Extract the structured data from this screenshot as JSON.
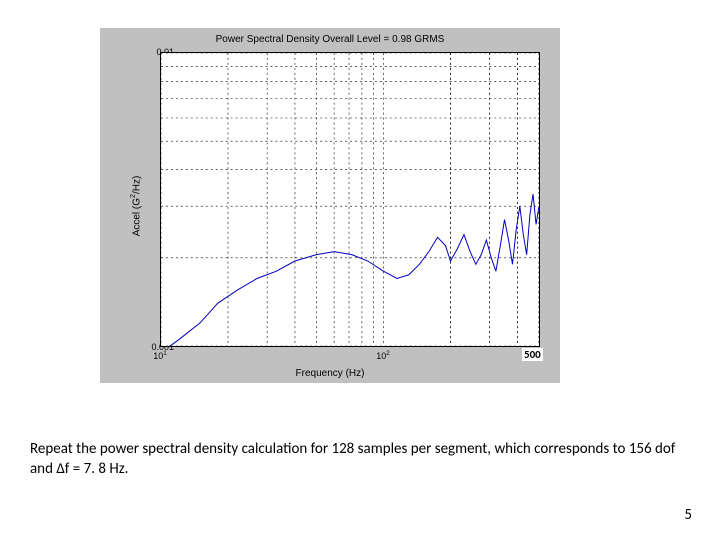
{
  "chart": {
    "type": "line",
    "title": "Power Spectral Density   Overall Level =   0.98 GRMS",
    "ylabel": "Accel (G²/Hz)",
    "xlabel": "Frequency (Hz)",
    "xscale": "log",
    "yscale": "log",
    "xlim": [
      10,
      500
    ],
    "ylim": [
      0.001,
      0.01
    ],
    "xtick_labels": [
      "10¹",
      "10²"
    ],
    "xtick_values": [
      10,
      100
    ],
    "xmax_label": "500",
    "ytick_labels": [
      "0.001",
      "0.01"
    ],
    "ytick_values": [
      0.001,
      0.01
    ],
    "background_color": "#c0c0c0",
    "plot_background": "#ffffff",
    "grid_color": "#000000",
    "grid_dash": "2,3",
    "line_color": "#0000c0",
    "line_width": 1,
    "title_fontsize": 10,
    "label_fontsize": 10,
    "tick_fontsize": 9,
    "data": {
      "x": [
        10,
        12,
        15,
        18,
        22,
        27,
        33,
        40,
        50,
        60,
        72,
        85,
        100,
        115,
        130,
        145,
        160,
        175,
        190,
        200,
        215,
        230,
        245,
        260,
        275,
        290,
        305,
        320,
        335,
        350,
        365,
        380,
        395,
        410,
        425,
        440,
        455,
        470,
        485,
        500
      ],
      "y": [
        0.00095,
        0.00105,
        0.0012,
        0.0014,
        0.00155,
        0.0017,
        0.0018,
        0.00195,
        0.00205,
        0.0021,
        0.00205,
        0.00195,
        0.0018,
        0.0017,
        0.00175,
        0.0019,
        0.0021,
        0.00235,
        0.0022,
        0.00195,
        0.00215,
        0.0024,
        0.0021,
        0.0019,
        0.00205,
        0.0023,
        0.002,
        0.0018,
        0.0022,
        0.0027,
        0.0023,
        0.0019,
        0.0025,
        0.003,
        0.0024,
        0.00205,
        0.0028,
        0.0033,
        0.0026,
        0.003
      ]
    }
  },
  "caption": "Repeat the power spectral density calculation for 128 samples per segment, which corresponds to 156 dof and ∆f =  7. 8 Hz.",
  "page_number": "5"
}
